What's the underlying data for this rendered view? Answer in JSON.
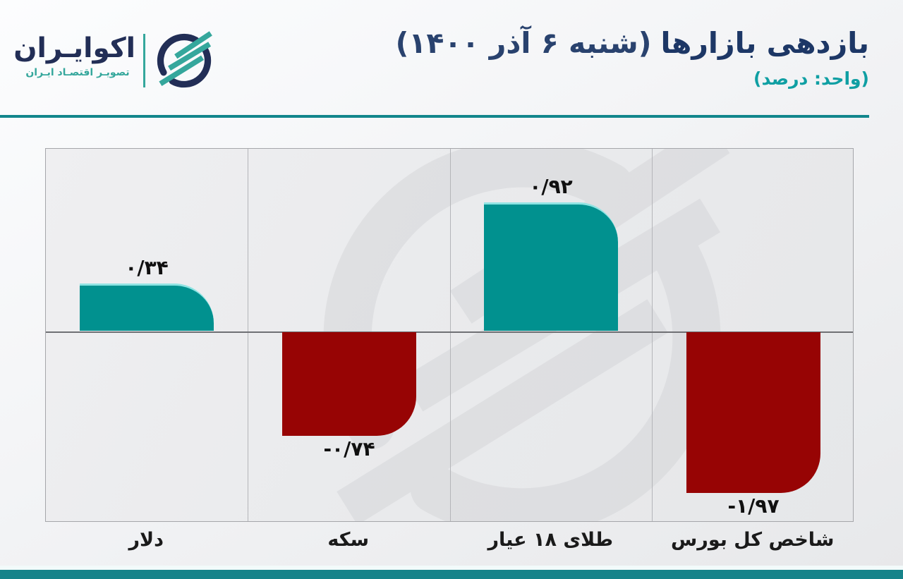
{
  "header": {
    "logo_name": "اکوایـران",
    "logo_tagline": "تصویـر اقتصـاد ایـران",
    "logo_navy": "#222e56",
    "logo_teal": "#35a79c",
    "title_bold": "بازدهی بازارها",
    "title_date": "(شنبه ۶ آذر ۱۴۰۰)",
    "title_color": "#1d3766",
    "unit_note": "(واحد: درصد)",
    "unit_color": "#0f9fa3"
  },
  "chart_data": {
    "type": "bar",
    "title": "بازدهی بازارها (شنبه ۶ آذر ۱۴۰۰)",
    "unit": "درصد",
    "categories": [
      "دلار",
      "سکه",
      "طلای ۱۸ عیار",
      "شاخص کل بورس"
    ],
    "values": [
      0.34,
      -0.74,
      0.92,
      -1.97
    ],
    "value_labels": [
      "۰/۳۴",
      "-۰/۷۴",
      "۰/۹۲",
      "-۱/۹۷"
    ],
    "positive_color": "#01918f",
    "negative_color": "#970404",
    "baseline": 0,
    "grid": "vertical-dividers-and-zero-line",
    "legend": "none"
  },
  "footer": {
    "accent_bar_color": "#16838a"
  }
}
